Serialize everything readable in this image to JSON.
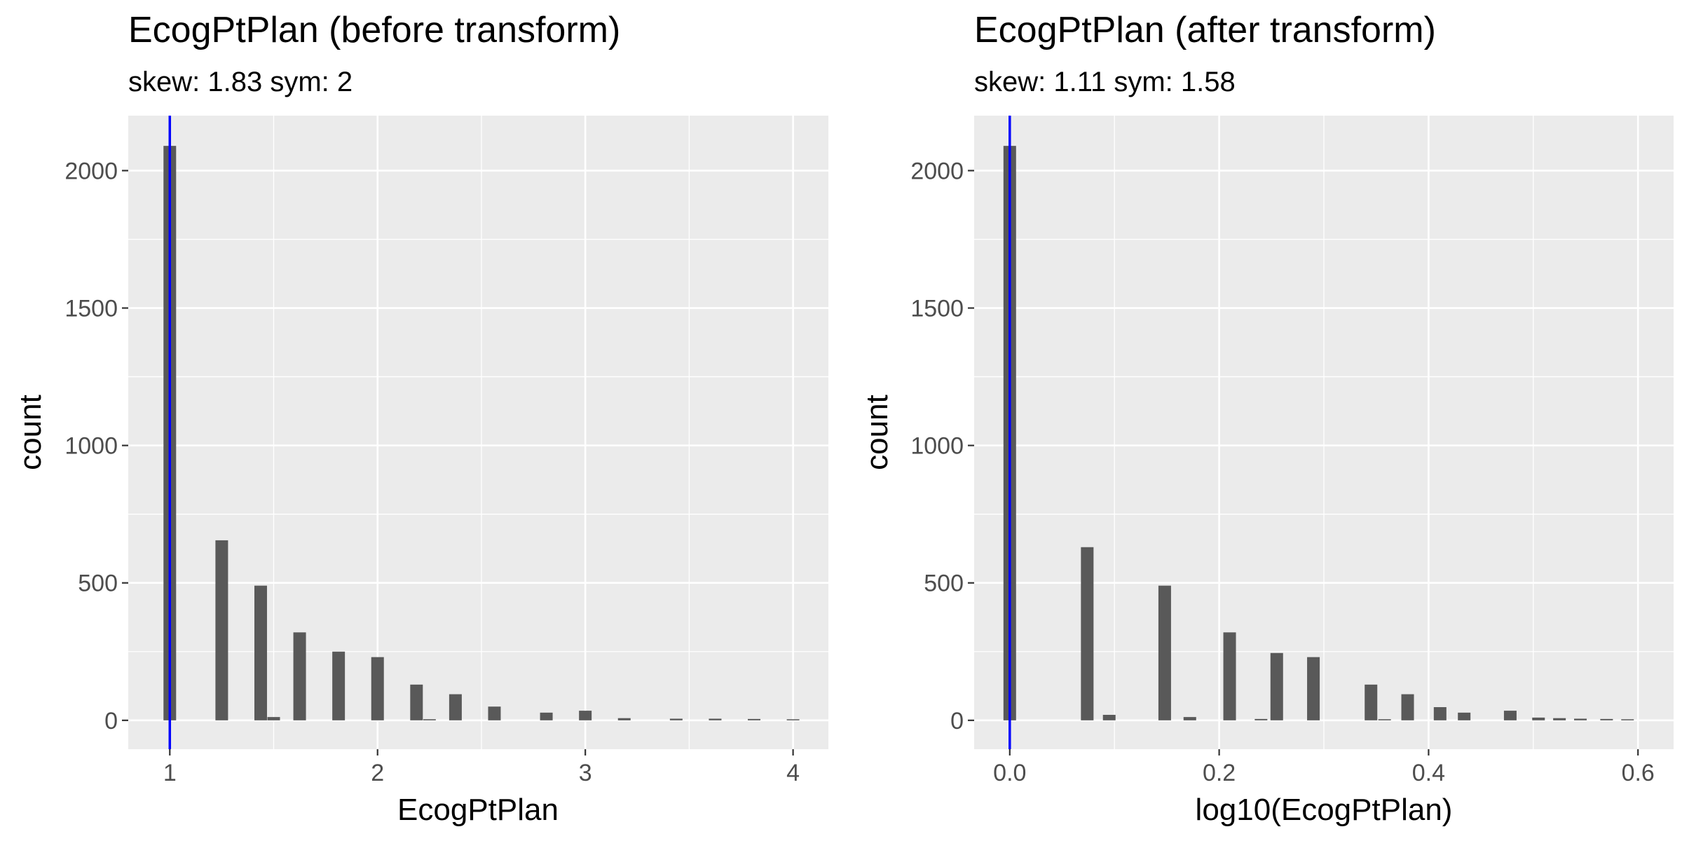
{
  "chart_data": [
    {
      "type": "bar",
      "title": "EcogPtPlan (before transform)",
      "subtitle": "skew: 1.83 sym: 2",
      "xlabel": "EcogPtPlan",
      "ylabel": "count",
      "xlim": [
        0.8,
        4.17
      ],
      "ylim": [
        -105,
        2200
      ],
      "xticks": [
        "1",
        "2",
        "3",
        "4"
      ],
      "xtick_values": [
        1,
        2,
        3,
        4
      ],
      "yticks": [
        "0",
        "500",
        "1000",
        "1500",
        "2000"
      ],
      "ytick_values": [
        0,
        500,
        1000,
        1500,
        2000
      ],
      "grid": true,
      "vline": {
        "x": 1.0,
        "color": "#0000ff"
      },
      "bar_color": "#595959",
      "x": [
        1.0,
        1.25,
        1.4375,
        1.5,
        1.625,
        1.8125,
        2.0,
        2.1875,
        2.25,
        2.375,
        2.5625,
        2.8125,
        3.0,
        3.1875,
        3.4375,
        3.625,
        3.8125,
        4.0
      ],
      "values": [
        2090,
        655,
        490,
        12,
        320,
        250,
        230,
        130,
        4,
        95,
        50,
        28,
        35,
        8,
        6,
        6,
        5,
        3
      ]
    },
    {
      "type": "bar",
      "title": "EcogPtPlan (after transform)",
      "subtitle": "skew: 1.11 sym: 1.58",
      "xlabel": "log10(EcogPtPlan)",
      "ylabel": "count",
      "xlim": [
        -0.034,
        0.634
      ],
      "ylim": [
        -105,
        2200
      ],
      "xticks": [
        "0.0",
        "0.2",
        "0.4",
        "0.6"
      ],
      "xtick_values": [
        0.0,
        0.2,
        0.4,
        0.6
      ],
      "yticks": [
        "0",
        "500",
        "1000",
        "1500",
        "2000"
      ],
      "ytick_values": [
        0,
        500,
        1000,
        1500,
        2000
      ],
      "grid": true,
      "vline": {
        "x": 0.0,
        "color": "#0000ff"
      },
      "bar_color": "#595959",
      "x": [
        0.0,
        0.074,
        0.095,
        0.148,
        0.172,
        0.21,
        0.24,
        0.255,
        0.29,
        0.345,
        0.358,
        0.38,
        0.411,
        0.434,
        0.478,
        0.505,
        0.525,
        0.545,
        0.57,
        0.59
      ],
      "values": [
        2090,
        630,
        20,
        490,
        12,
        320,
        5,
        245,
        230,
        130,
        4,
        95,
        48,
        28,
        35,
        10,
        8,
        6,
        5,
        3
      ]
    }
  ]
}
